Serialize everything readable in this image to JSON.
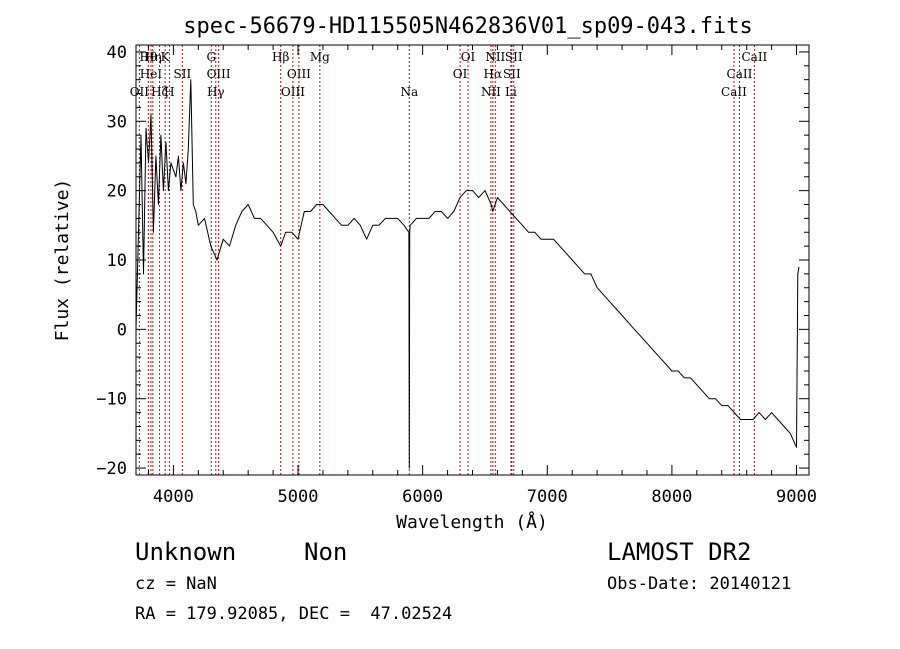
{
  "chart_data": {
    "type": "line",
    "title": "spec-56679-HD115505N462836V01_sp09-043.fits",
    "xlabel": "Wavelength (Å)",
    "ylabel": "Flux (relative)",
    "xlim": [
      3700,
      9100
    ],
    "ylim": [
      -21,
      41
    ],
    "xticks": [
      "4000",
      "5000",
      "6000",
      "7000",
      "8000",
      "9000"
    ],
    "yticks": [
      "40",
      "30",
      "20",
      "10",
      "0",
      "−10",
      "−20"
    ],
    "grid": false,
    "series": [
      {
        "x": [
          3700,
          3720,
          3740,
          3760,
          3780,
          3800,
          3820,
          3840,
          3860,
          3880,
          3900,
          3920,
          3940,
          3960,
          3980,
          4000,
          4020,
          4040,
          4060,
          4080,
          4100,
          4120,
          4140,
          4160,
          4180,
          4200,
          4250,
          4300,
          4350,
          4400,
          4450,
          4500,
          4550,
          4600,
          4650,
          4700,
          4750,
          4800,
          4861,
          4900,
          4950,
          5000,
          5050,
          5100,
          5150,
          5200,
          5250,
          5300,
          5350,
          5400,
          5450,
          5500,
          5550,
          5600,
          5650,
          5700,
          5750,
          5800,
          5850,
          5890,
          5893,
          5896,
          5900,
          5950,
          6000,
          6050,
          6100,
          6150,
          6200,
          6250,
          6300,
          6350,
          6400,
          6450,
          6500,
          6550,
          6563,
          6600,
          6650,
          6700,
          6750,
          6800,
          6850,
          6900,
          6950,
          7000,
          7050,
          7100,
          7150,
          7200,
          7250,
          7300,
          7350,
          7400,
          7450,
          7500,
          7550,
          7600,
          7650,
          7700,
          7750,
          7800,
          7850,
          7900,
          7950,
          8000,
          8050,
          8100,
          8150,
          8200,
          8250,
          8300,
          8350,
          8400,
          8450,
          8500,
          8550,
          8600,
          8650,
          8700,
          8750,
          8800,
          8850,
          8900,
          8950,
          9000,
          9010,
          9020
        ],
        "y": [
          0,
          14,
          28,
          8,
          29,
          24,
          31,
          14,
          25,
          18,
          28,
          20,
          27,
          20,
          24,
          23,
          22,
          25,
          20,
          24,
          21,
          26,
          36,
          18,
          17,
          15,
          16,
          12,
          10,
          13,
          12,
          15,
          17,
          18,
          16,
          16,
          15,
          14,
          12,
          14,
          14,
          13,
          17,
          17,
          18,
          18,
          17,
          16,
          15,
          15,
          16,
          15,
          13,
          15,
          15,
          16,
          16,
          16,
          15,
          14,
          -20,
          14,
          15,
          16,
          16,
          16,
          17,
          17,
          16,
          17,
          19,
          20,
          20,
          19,
          20,
          18,
          17,
          19,
          18,
          17,
          16,
          15,
          14,
          14,
          13,
          13,
          13,
          12,
          11,
          10,
          9,
          8,
          8,
          6,
          5,
          4,
          3,
          2,
          1,
          0,
          -1,
          -2,
          -3,
          -4,
          -5,
          -6,
          -6,
          -7,
          -7,
          -8,
          -9,
          -10,
          -10,
          -11,
          -11,
          -12,
          -13,
          -13,
          -13,
          -12,
          -13,
          -12,
          -13,
          -14,
          -15,
          -17,
          8,
          9
        ]
      }
    ],
    "line_markers": [
      {
        "w": 3727,
        "label": "OII",
        "row": 3
      },
      {
        "w": 3799,
        "label": "Hθ",
        "row": 1
      },
      {
        "w": 3820,
        "label": "HeI",
        "row": 2
      },
      {
        "w": 3835,
        "label": "Hη",
        "row": 1
      },
      {
        "w": 3889,
        "label": "Hζ",
        "row": 3
      },
      {
        "w": 3934,
        "label": "K",
        "row": 1
      },
      {
        "w": 3968,
        "label": "H",
        "row": 3
      },
      {
        "w": 4072,
        "label": "SII",
        "row": 2
      },
      {
        "w": 4304,
        "label": "G",
        "row": 1
      },
      {
        "w": 4340,
        "label": "Hγ",
        "row": 3
      },
      {
        "w": 4363,
        "label": "OIII",
        "row": 2
      },
      {
        "w": 4861,
        "label": "Hβ",
        "row": 1
      },
      {
        "w": 4959,
        "label": "OIII",
        "row": 3
      },
      {
        "w": 5007,
        "label": "OIII",
        "row": 2
      },
      {
        "w": 5175,
        "label": "Mg",
        "row": 1
      },
      {
        "w": 5893,
        "label": "Na",
        "row": 3
      },
      {
        "w": 6300,
        "label": "OI",
        "row": 2
      },
      {
        "w": 6364,
        "label": "OI",
        "row": 1
      },
      {
        "w": 6548,
        "label": "NII",
        "row": 3
      },
      {
        "w": 6563,
        "label": "Hα",
        "row": 2
      },
      {
        "w": 6583,
        "label": "NII",
        "row": 1
      },
      {
        "w": 6708,
        "label": "Li",
        "row": 3
      },
      {
        "w": 6716,
        "label": "SII",
        "row": 2
      },
      {
        "w": 6731,
        "label": "SII",
        "row": 1
      },
      {
        "w": 8498,
        "label": "CaII",
        "row": 3
      },
      {
        "w": 8542,
        "label": "CaII",
        "row": 2
      },
      {
        "w": 8662,
        "label": "CaII",
        "row": 1
      }
    ]
  },
  "info": {
    "class": "Unknown",
    "subclass": "Non",
    "survey": "LAMOST DR2",
    "cz": "cz = NaN",
    "obs_date": "Obs-Date: 20140121",
    "coords": "RA = 179.92085, DEC =  47.02524"
  }
}
